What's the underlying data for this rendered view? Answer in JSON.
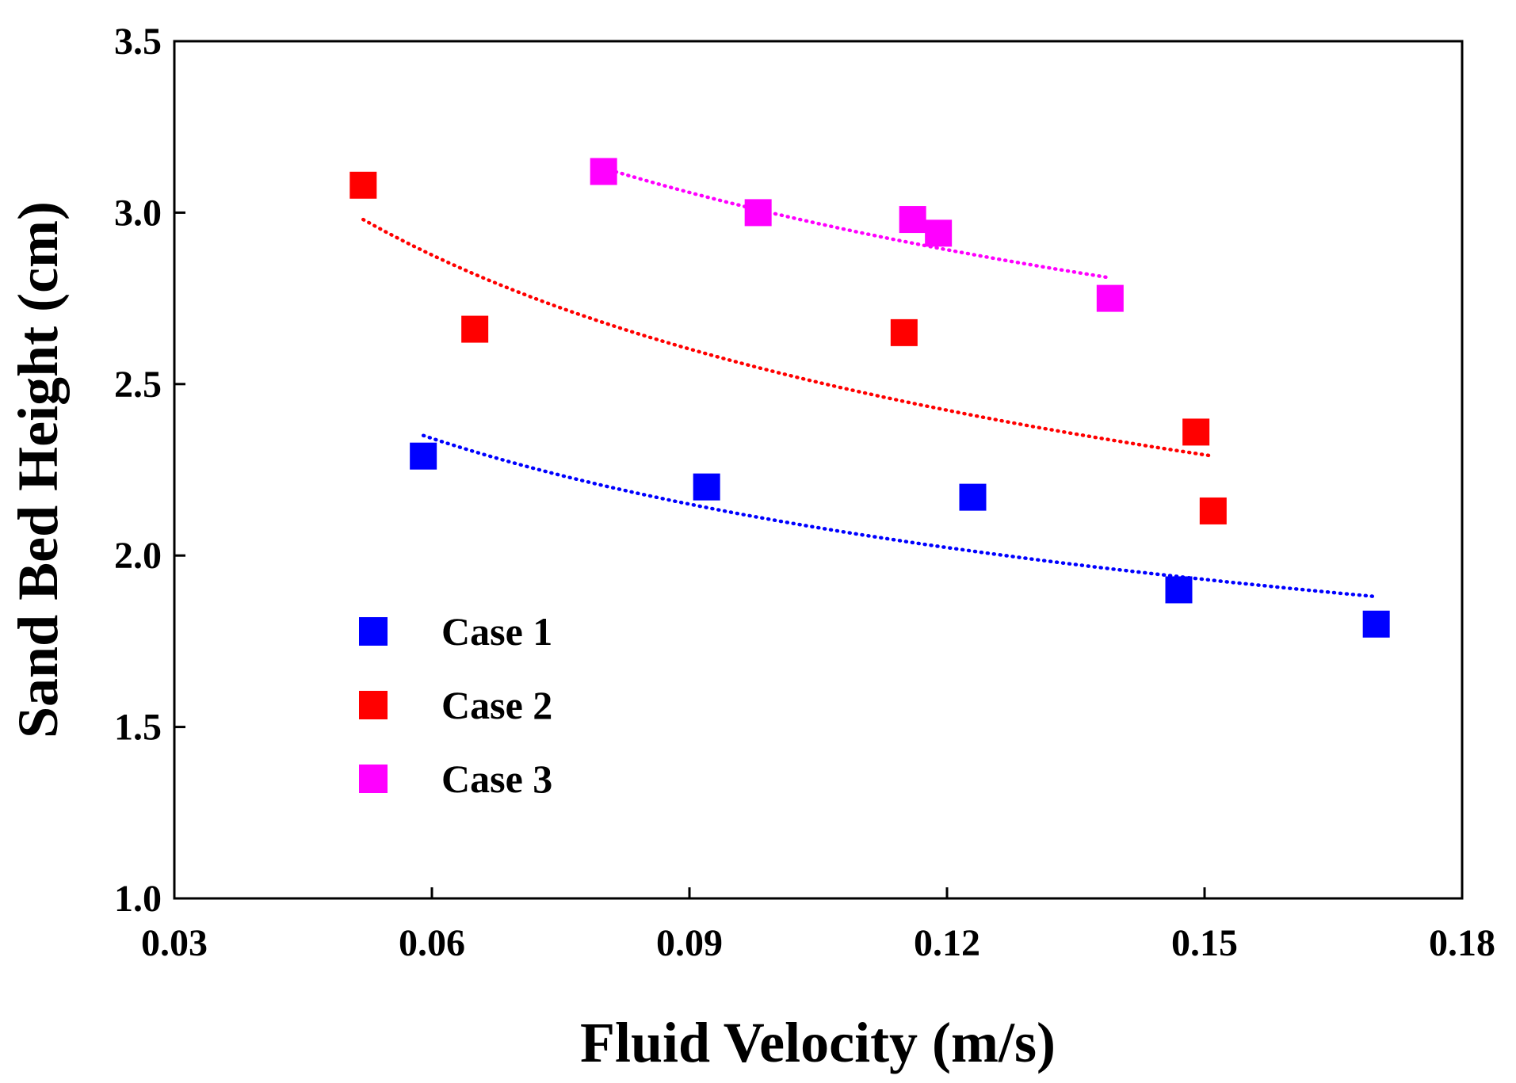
{
  "chart_data": {
    "type": "scatter",
    "title": "",
    "xlabel": "Fluid Velocity (m/s)",
    "ylabel": "Sand Bed Height (cm)",
    "xlim": [
      0.03,
      0.18
    ],
    "ylim": [
      1.0,
      3.5
    ],
    "xticks": [
      0.03,
      0.06,
      0.09,
      0.12,
      0.15,
      0.18
    ],
    "xtick_labels": [
      "0.03",
      "0.06",
      "0.09",
      "0.12",
      "0.15",
      "0.18"
    ],
    "yticks": [
      1.0,
      1.5,
      2.0,
      2.5,
      3.0,
      3.5
    ],
    "ytick_labels": [
      "1.0",
      "1.5",
      "2.0",
      "2.5",
      "3.0",
      "3.5"
    ],
    "grid": false,
    "legend_position": "bottom-left",
    "series": [
      {
        "name": "Case 1",
        "color": "#0000ff",
        "x": [
          0.059,
          0.092,
          0.123,
          0.147,
          0.17
        ],
        "y": [
          2.29,
          2.2,
          2.17,
          1.9,
          1.8
        ],
        "trend": {
          "type": "power",
          "x_range": [
            0.059,
            0.17
          ],
          "y_range": [
            2.35,
            1.88
          ]
        }
      },
      {
        "name": "Case 2",
        "color": "#ff0000",
        "x": [
          0.052,
          0.065,
          0.115,
          0.149,
          0.151
        ],
        "y": [
          3.08,
          2.66,
          2.65,
          2.36,
          2.13
        ],
        "trend": {
          "type": "power",
          "x_range": [
            0.052,
            0.151
          ],
          "y_range": [
            2.98,
            2.29
          ]
        }
      },
      {
        "name": "Case 3",
        "color": "#ff00ff",
        "x": [
          0.08,
          0.098,
          0.116,
          0.119,
          0.139
        ],
        "y": [
          3.12,
          3.0,
          2.98,
          2.94,
          2.75
        ],
        "trend": {
          "type": "power",
          "x_range": [
            0.08,
            0.139
          ],
          "y_range": [
            3.13,
            2.81
          ]
        }
      }
    ]
  }
}
